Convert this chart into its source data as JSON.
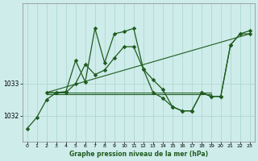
{
  "title": "Graphe pression niveau de la mer (hPa)",
  "background_color": "#ceecea",
  "line_color": "#1f5c1f",
  "grid_color": "#aad4ce",
  "xlim": [
    -0.5,
    23.5
  ],
  "ylim": [
    1031.2,
    1035.5
  ],
  "yticks": [
    1032,
    1033
  ],
  "xticks": [
    0,
    1,
    2,
    3,
    4,
    5,
    6,
    7,
    8,
    9,
    10,
    11,
    12,
    13,
    14,
    15,
    16,
    17,
    18,
    19,
    20,
    21,
    22,
    23
  ],
  "line1_x": [
    0,
    1,
    2,
    3,
    4,
    5,
    6,
    7,
    8,
    9,
    10,
    11,
    12,
    13,
    14,
    15,
    16,
    17,
    18,
    19,
    20,
    21,
    22,
    23
  ],
  "line1_y": [
    1031.6,
    1031.95,
    1032.5,
    1032.72,
    1032.72,
    1033.0,
    1033.6,
    1033.28,
    1033.42,
    1033.8,
    1034.15,
    1034.15,
    1033.45,
    1033.12,
    1032.82,
    1032.28,
    1032.15,
    1032.15,
    1032.72,
    1032.6,
    1032.6,
    1034.2,
    1034.55,
    1034.55
  ],
  "line2_x": [
    2,
    3,
    4,
    5,
    6,
    7,
    8,
    9,
    10,
    11,
    12,
    13,
    14,
    15,
    16,
    17,
    18,
    19,
    20,
    21,
    22,
    23
  ],
  "line2_y": [
    1032.72,
    1032.72,
    1032.75,
    1033.72,
    1033.05,
    1034.72,
    1033.65,
    1034.55,
    1034.62,
    1034.72,
    1033.45,
    1032.72,
    1032.55,
    1032.28,
    1032.15,
    1032.15,
    1032.72,
    1032.6,
    1032.6,
    1034.2,
    1034.55,
    1034.65
  ],
  "line3_x": [
    2,
    23
  ],
  "line3_y": [
    1032.72,
    1034.55
  ],
  "line4_x": [
    2,
    19
  ],
  "line4_y": [
    1032.68,
    1032.68
  ],
  "line5_x": [
    2,
    19
  ],
  "line5_y": [
    1032.72,
    1032.72
  ]
}
